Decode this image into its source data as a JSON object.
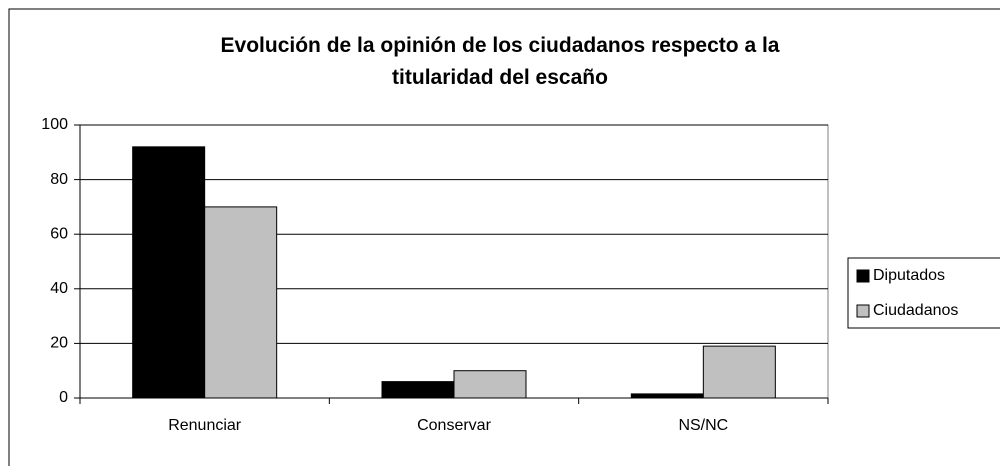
{
  "chart_data": {
    "type": "bar",
    "title": "Evolución de la opinión de los ciudadanos respecto a la titularidad del escaño",
    "categories": [
      "Renunciar",
      "Conservar",
      "NS/NC"
    ],
    "series": [
      {
        "name": "Diputados",
        "color": "#000000",
        "values": [
          92,
          6,
          1.5
        ]
      },
      {
        "name": "Ciudadanos",
        "color": "#c0c0c0",
        "values": [
          70,
          10,
          19
        ]
      }
    ],
    "ylim": [
      0,
      100
    ],
    "yticks": [
      0,
      20,
      40,
      60,
      80,
      100
    ],
    "grid": true,
    "legend": "right"
  }
}
